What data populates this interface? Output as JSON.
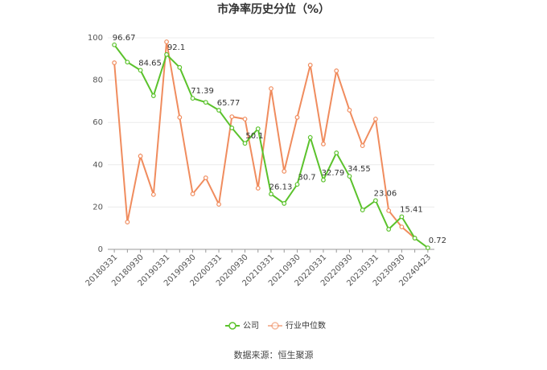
{
  "chart_data": {
    "type": "line",
    "title": "市净率历史分位（%）",
    "source": "数据来源：恒生聚源",
    "categories": [
      "20180331",
      null,
      "20180930",
      null,
      "20190331",
      null,
      "20190930",
      null,
      "20200331",
      null,
      "20200930",
      null,
      "20210331",
      null,
      "20210930",
      null,
      "20220331",
      null,
      "20220930",
      null,
      "20230331",
      null,
      "20230930",
      null,
      "20240423"
    ],
    "series": [
      {
        "name": "公司",
        "color": "#5bc22c",
        "values": [
          96.67,
          88.5,
          84.65,
          72.6,
          92.1,
          86,
          71.39,
          69.5,
          65.77,
          57.4,
          50.1,
          57,
          26.13,
          21.7,
          30.7,
          52.9,
          32.79,
          45.6,
          34.55,
          18.6,
          23.06,
          9.5,
          15.41,
          5.3,
          0.72
        ]
      },
      {
        "name": "行业中位数",
        "color": "#f08c5e",
        "values": [
          88.2,
          12.9,
          44.1,
          25.9,
          98.1,
          62.4,
          26.2,
          33.8,
          21.3,
          62.7,
          61.6,
          28.9,
          76,
          36.9,
          62.4,
          87.1,
          49.8,
          84.4,
          65.8,
          49,
          61.6,
          18.3,
          10.6,
          5.3,
          null
        ]
      }
    ],
    "ylim": [
      0,
      100
    ],
    "yticks": [
      0,
      20,
      40,
      60,
      80,
      100
    ],
    "grid": true,
    "legend": "bottom"
  }
}
